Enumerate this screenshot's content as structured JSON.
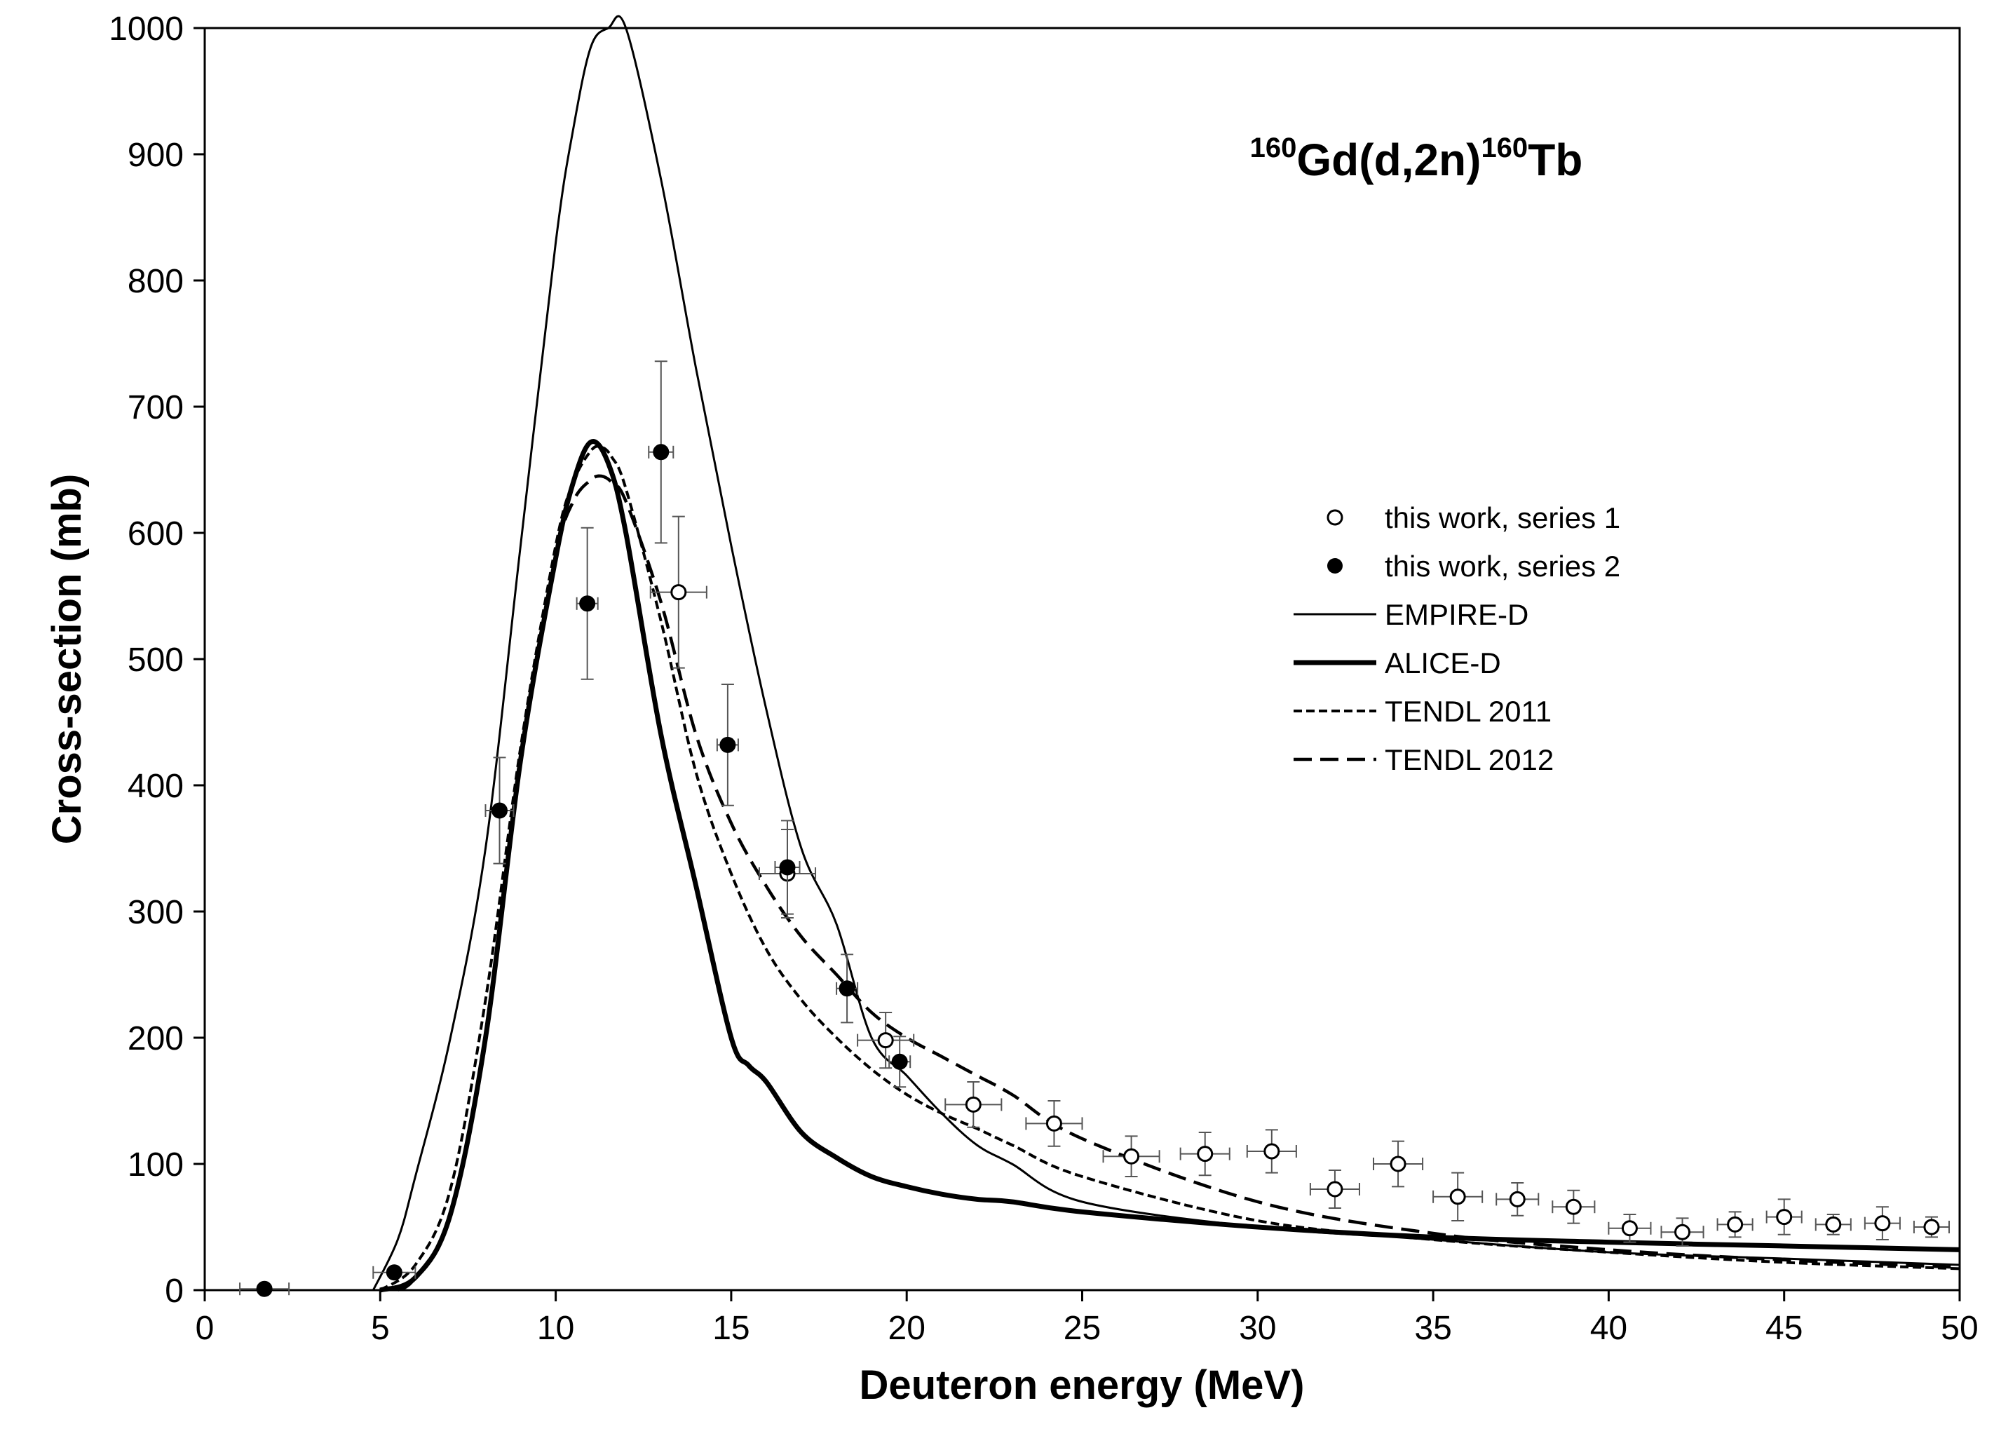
{
  "chart_data": {
    "type": "scatter",
    "title": "Gd(d,2n)Tb",
    "title_parts": [
      {
        "text": "160",
        "sup": true
      },
      {
        "text": "Gd(d,2n)",
        "sup": false
      },
      {
        "text": "160",
        "sup": true
      },
      {
        "text": "Tb",
        "sup": false
      }
    ],
    "xlabel": "Deuteron energy (MeV)",
    "ylabel": "Cross-section (mb)",
    "xlim": [
      0,
      50
    ],
    "ylim": [
      0,
      1000
    ],
    "xticks": [
      0,
      5,
      10,
      15,
      20,
      25,
      30,
      35,
      40,
      45,
      50
    ],
    "yticks": [
      0,
      100,
      200,
      300,
      400,
      500,
      600,
      700,
      800,
      900,
      1000
    ],
    "grid": false,
    "legend_position": "right",
    "series": [
      {
        "name": "this work, series 1",
        "kind": "points",
        "marker": "open-circle",
        "points": [
          {
            "x": 13.5,
            "y": 553,
            "xerr": 0.8,
            "yerr": 60
          },
          {
            "x": 16.6,
            "y": 330,
            "xerr": 0.8,
            "yerr": 35
          },
          {
            "x": 19.4,
            "y": 198,
            "xerr": 0.8,
            "yerr": 22
          },
          {
            "x": 21.9,
            "y": 147,
            "xerr": 0.8,
            "yerr": 18
          },
          {
            "x": 24.2,
            "y": 132,
            "xerr": 0.8,
            "yerr": 18
          },
          {
            "x": 26.4,
            "y": 106,
            "xerr": 0.8,
            "yerr": 16
          },
          {
            "x": 28.5,
            "y": 108,
            "xerr": 0.7,
            "yerr": 17
          },
          {
            "x": 30.4,
            "y": 110,
            "xerr": 0.7,
            "yerr": 17
          },
          {
            "x": 32.2,
            "y": 80,
            "xerr": 0.7,
            "yerr": 15
          },
          {
            "x": 34.0,
            "y": 100,
            "xerr": 0.7,
            "yerr": 18
          },
          {
            "x": 35.7,
            "y": 74,
            "xerr": 0.7,
            "yerr": 19
          },
          {
            "x": 37.4,
            "y": 72,
            "xerr": 0.6,
            "yerr": 13
          },
          {
            "x": 39.0,
            "y": 66,
            "xerr": 0.6,
            "yerr": 13
          },
          {
            "x": 40.6,
            "y": 49,
            "xerr": 0.6,
            "yerr": 11
          },
          {
            "x": 42.1,
            "y": 46,
            "xerr": 0.6,
            "yerr": 11
          },
          {
            "x": 43.6,
            "y": 52,
            "xerr": 0.5,
            "yerr": 10
          },
          {
            "x": 45.0,
            "y": 58,
            "xerr": 0.5,
            "yerr": 14
          },
          {
            "x": 46.4,
            "y": 52,
            "xerr": 0.5,
            "yerr": 8
          },
          {
            "x": 47.8,
            "y": 53,
            "xerr": 0.5,
            "yerr": 13
          },
          {
            "x": 49.2,
            "y": 50,
            "xerr": 0.5,
            "yerr": 8
          }
        ]
      },
      {
        "name": "this work, series 2",
        "kind": "points",
        "marker": "filled-circle",
        "points": [
          {
            "x": 1.7,
            "y": 1,
            "xerr": 0.7,
            "yerr": 0
          },
          {
            "x": 5.4,
            "y": 14,
            "xerr": 0.6,
            "yerr": 3
          },
          {
            "x": 8.4,
            "y": 380,
            "xerr": 0.4,
            "yerr": 42
          },
          {
            "x": 10.9,
            "y": 544,
            "xerr": 0.3,
            "yerr": 60
          },
          {
            "x": 13.0,
            "y": 664,
            "xerr": 0.35,
            "yerr": 72
          },
          {
            "x": 14.9,
            "y": 432,
            "xerr": 0.3,
            "yerr": 48
          },
          {
            "x": 16.6,
            "y": 335,
            "xerr": 0.35,
            "yerr": 37
          },
          {
            "x": 18.3,
            "y": 239,
            "xerr": 0.3,
            "yerr": 27
          },
          {
            "x": 19.8,
            "y": 181,
            "xerr": 0.3,
            "yerr": 20
          }
        ]
      },
      {
        "name": "EMPIRE-D",
        "kind": "line",
        "style": "thin",
        "x": [
          4.8,
          5.5,
          6.0,
          7.0,
          8.0,
          9.0,
          10.0,
          10.5,
          11.0,
          11.5,
          12.0,
          13.0,
          14.0,
          15.0,
          16.0,
          17.0,
          18.0,
          19.0,
          20.0,
          21.0,
          22.0,
          23.0,
          25.0,
          30.0,
          35.0,
          40.0,
          45.0,
          50.0
        ],
        "y": [
          0,
          40,
          90,
          200,
          350,
          590,
          830,
          920,
          985,
          1000,
          1000,
          880,
          730,
          590,
          460,
          350,
          290,
          200,
          170,
          140,
          115,
          100,
          70,
          50,
          40,
          30,
          25,
          20
        ]
      },
      {
        "name": "ALICE-D",
        "kind": "line",
        "style": "thick",
        "x": [
          5.0,
          6.0,
          7.0,
          8.0,
          9.0,
          10.0,
          10.5,
          11.0,
          11.5,
          12.0,
          13.0,
          14.0,
          15.0,
          15.5,
          16.0,
          17.0,
          18.0,
          19.0,
          20.0,
          21.0,
          22.0,
          23.0,
          25.0,
          30.0,
          35.0,
          40.0,
          45.0,
          50.0
        ],
        "y": [
          0,
          10,
          60,
          200,
          420,
          580,
          640,
          672,
          655,
          600,
          440,
          320,
          200,
          178,
          165,
          125,
          105,
          90,
          82,
          76,
          72,
          70,
          62,
          50,
          42,
          38,
          35,
          32
        ]
      },
      {
        "name": "TENDL 2011",
        "kind": "line",
        "style": "dotted",
        "x": [
          5.0,
          6.0,
          7.0,
          8.0,
          9.0,
          10.0,
          10.5,
          11.0,
          11.3,
          11.6,
          12.0,
          13.0,
          14.0,
          15.0,
          16.0,
          17.0,
          18.0,
          19.0,
          20.0,
          21.0,
          22.0,
          23.0,
          25.0,
          30.0,
          35.0,
          40.0,
          45.0,
          50.0
        ],
        "y": [
          0,
          20,
          80,
          230,
          430,
          590,
          640,
          665,
          668,
          660,
          635,
          530,
          410,
          330,
          270,
          230,
          200,
          175,
          155,
          140,
          128,
          115,
          90,
          55,
          40,
          30,
          22,
          17
        ]
      },
      {
        "name": "TENDL 2012",
        "kind": "line",
        "style": "dashed",
        "x": [
          5.5,
          6.0,
          7.0,
          8.0,
          9.0,
          10.0,
          10.5,
          11.0,
          11.3,
          11.6,
          12.0,
          13.0,
          14.0,
          15.0,
          16.0,
          17.0,
          18.0,
          19.0,
          20.0,
          21.0,
          22.0,
          23.0,
          25.0,
          30.0,
          35.0,
          40.0,
          45.0,
          50.0
        ],
        "y": [
          0,
          10,
          60,
          200,
          420,
          580,
          625,
          642,
          645,
          640,
          625,
          545,
          440,
          370,
          320,
          280,
          250,
          220,
          200,
          185,
          170,
          155,
          120,
          70,
          45,
          32,
          24,
          18
        ]
      }
    ]
  }
}
